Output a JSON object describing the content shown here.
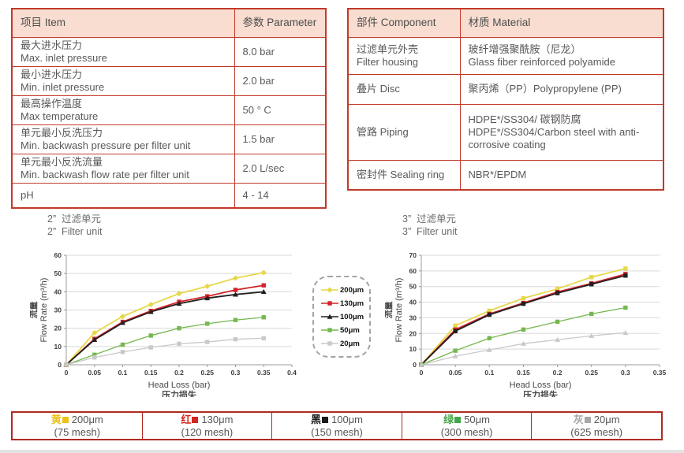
{
  "colors": {
    "table_border": "#c13a2a",
    "table_header_bg": "#f8ddd0",
    "text_dark": "#595959",
    "bottom_border": "#b02a20",
    "series": {
      "s200": "#e6d84b",
      "s130": "#d2232a",
      "s100": "#231f20",
      "s50": "#76b751",
      "s20": "#c9c9c9"
    }
  },
  "spec_table": {
    "headers": [
      "项目 Item",
      "参数 Parameter"
    ],
    "rows": [
      {
        "item_zh": "最大进水压力",
        "item_en": "Max. inlet pressure",
        "value": "8.0 bar"
      },
      {
        "item_zh": "最小进水压力",
        "item_en": "Min. inlet pressure",
        "value": "2.0 bar"
      },
      {
        "item_zh": "最高操作温度",
        "item_en": "Max temperature",
        "value": "50 ° C"
      },
      {
        "item_zh": "单元最小反洗压力",
        "item_en": "Min. backwash pressure per filter unit",
        "value": "1.5 bar"
      },
      {
        "item_zh": "单元最小反洗流量",
        "item_en": "Min. backwash flow rate per filter unit",
        "value": "2.0 L/sec"
      },
      {
        "item_zh": "pH",
        "item_en": "",
        "value": "4 - 14"
      }
    ]
  },
  "material_table": {
    "headers": [
      "部件 Component",
      "材质 Material"
    ],
    "rows": [
      {
        "comp_zh": "过滤单元外壳",
        "comp_en": "Filter housing",
        "mat_zh": "玻纤增强聚酰胺（尼龙）",
        "mat_en": "Glass fiber reinforced polyamide"
      },
      {
        "comp_zh": "叠片 Disc",
        "comp_en": "",
        "mat_zh": "聚丙烯（PP）Polypropylene (PP)",
        "mat_en": ""
      },
      {
        "comp_zh": "管路 Piping",
        "comp_en": "",
        "mat_zh": "HDPE*/SS304/ 碳钢防腐",
        "mat_en": "HDPE*/SS304/Carbon steel with anti-corrosive coating"
      },
      {
        "comp_zh": "密封件 Sealing ring",
        "comp_en": "",
        "mat_zh": "NBR*/EPDM",
        "mat_en": ""
      }
    ]
  },
  "chart_data": [
    {
      "type": "line",
      "title_zh": "2”  过滤单元",
      "title_en": "2”  Filter unit",
      "ylabel_zh": "流量",
      "ylabel_en": "Flow Rate (m³/h)",
      "xlabel_en": "Head Loss (bar)",
      "xlabel_zh": "压力损失",
      "xlim": [
        0,
        0.4
      ],
      "ylim": [
        0,
        60
      ],
      "x_tick_step": 0.05,
      "y_tick_step": 10,
      "grid": true,
      "x": [
        0,
        0.05,
        0.1,
        0.15,
        0.2,
        0.25,
        0.3,
        0.35
      ],
      "series": [
        {
          "name": "200μm",
          "marker": "diamond",
          "color_key": "s200",
          "values": [
            0,
            17.5,
            26.5,
            33,
            39,
            43,
            47.5,
            50.5
          ]
        },
        {
          "name": "130μm",
          "marker": "square",
          "color_key": "s130",
          "values": [
            0,
            14.2,
            23.5,
            29.5,
            34.5,
            37.5,
            41,
            43.5
          ]
        },
        {
          "name": "100μm",
          "marker": "triangle",
          "color_key": "s100",
          "values": [
            0,
            13.7,
            23,
            29,
            33.5,
            36.5,
            38.5,
            40
          ]
        },
        {
          "name": "50μm",
          "marker": "square",
          "color_key": "s50",
          "values": [
            0,
            5.5,
            11,
            16,
            20,
            22.5,
            24.5,
            26
          ]
        },
        {
          "name": "20μm",
          "marker": "square",
          "color_key": "s20",
          "values": [
            0,
            4,
            7,
            9.5,
            11.5,
            12.5,
            14,
            14.5
          ]
        }
      ]
    },
    {
      "type": "line",
      "title_zh": "3”  过滤单元",
      "title_en": "3”  Filter unit",
      "ylabel_zh": "流量",
      "ylabel_en": "Flow Rate (m³/h)",
      "xlabel_en": "Head Loss (bar)",
      "xlabel_zh": "压力损失",
      "xlim": [
        0,
        0.35
      ],
      "ylim": [
        0,
        70
      ],
      "x_tick_step": 0.05,
      "y_tick_step": 10,
      "grid": true,
      "x": [
        0,
        0.05,
        0.1,
        0.15,
        0.2,
        0.25,
        0.3
      ],
      "series": [
        {
          "name": "200μm",
          "marker": "square",
          "color_key": "s200",
          "values": [
            0,
            25,
            34.5,
            42.5,
            48.5,
            56,
            61.5
          ]
        },
        {
          "name": "130μm",
          "marker": "square",
          "color_key": "s130",
          "values": [
            0,
            22.5,
            32.5,
            39.5,
            46.5,
            52,
            58
          ]
        },
        {
          "name": "100μm",
          "marker": "square",
          "color_key": "s100",
          "values": [
            0,
            21.5,
            32,
            39,
            45.8,
            51.5,
            57
          ]
        },
        {
          "name": "50μm",
          "marker": "square",
          "color_key": "s50",
          "values": [
            0,
            9,
            17,
            22.5,
            27.5,
            32.5,
            36.5
          ]
        },
        {
          "name": "20μm",
          "marker": "triangle",
          "color_key": "s20",
          "values": [
            0,
            5.5,
            9.5,
            13.5,
            16,
            18.5,
            20.5
          ]
        }
      ]
    }
  ],
  "legend_box": {
    "items": [
      {
        "label": "200μm",
        "color_key": "s200",
        "marker": "diamond"
      },
      {
        "label": "130μm",
        "color_key": "s130",
        "marker": "square"
      },
      {
        "label": "100μm",
        "color_key": "s100",
        "marker": "triangle"
      },
      {
        "label": "50μm",
        "color_key": "s50",
        "marker": "square"
      },
      {
        "label": "20μm",
        "color_key": "s20",
        "marker": "square"
      }
    ]
  },
  "bottom_legend": [
    {
      "cn": "黄",
      "size": "200μm",
      "mesh": "(75 mesh)",
      "color": "#edc11c"
    },
    {
      "cn": "红",
      "size": "130μm",
      "mesh": "(120 mesh)",
      "color": "#d5251c"
    },
    {
      "cn": "黑",
      "size": "100μm",
      "mesh": "(150 mesh)",
      "color": "#1a1a1a"
    },
    {
      "cn": "绿",
      "size": "50μm",
      "mesh": "(300 mesh)",
      "color": "#43a648"
    },
    {
      "cn": "灰",
      "size": "20μm",
      "mesh": "(625 mesh)",
      "color": "#a8a8a8"
    }
  ]
}
